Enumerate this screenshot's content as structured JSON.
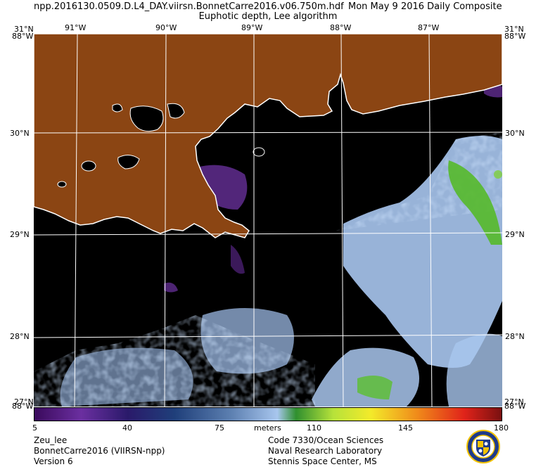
{
  "header": {
    "title_left": "npp.2016130.0509.D.L4_DAY.viirsn.BonnetCarre2016.v06.750m.hdf",
    "title_right": "Mon May  9 2016 Daily Composite",
    "subtitle": "Euphotic depth, Lee algorithm"
  },
  "map": {
    "lon_labels": [
      "91°W",
      "90°W",
      "89°W",
      "88°W",
      "87°W"
    ],
    "lat_labels": [
      "30°N",
      "29°N",
      "28°N"
    ],
    "corner_labels": {
      "top_left_lat": "31°N",
      "top_left_lon": "88°W",
      "top_right_lat": "31°N",
      "top_right_lon": "88°W",
      "bottom_left_lat": "27°N",
      "bottom_left_lon": "88°W",
      "bottom_right_lat": "27°N",
      "bottom_right_lon": "88°W"
    },
    "colors": {
      "land": "#8b4513",
      "no_data": "#000000",
      "coastline": "#ffffff",
      "graticule": "#ffffff"
    }
  },
  "colorbar": {
    "ticks": [
      "5",
      "40",
      "75",
      "110",
      "145",
      "180"
    ],
    "unit": "meters",
    "min": 5,
    "max": 180
  },
  "footer": {
    "product": "Zeu_lee",
    "region": "BonnetCarre2016 (VIIRSN-npp)",
    "version": "Version 6",
    "org_line1": "Code 7330/Ocean Sciences",
    "org_line2": "Naval Research Laboratory",
    "org_line3": "Stennis Space Center, MS"
  },
  "logo": {
    "icon": "nrl-seal-icon"
  }
}
